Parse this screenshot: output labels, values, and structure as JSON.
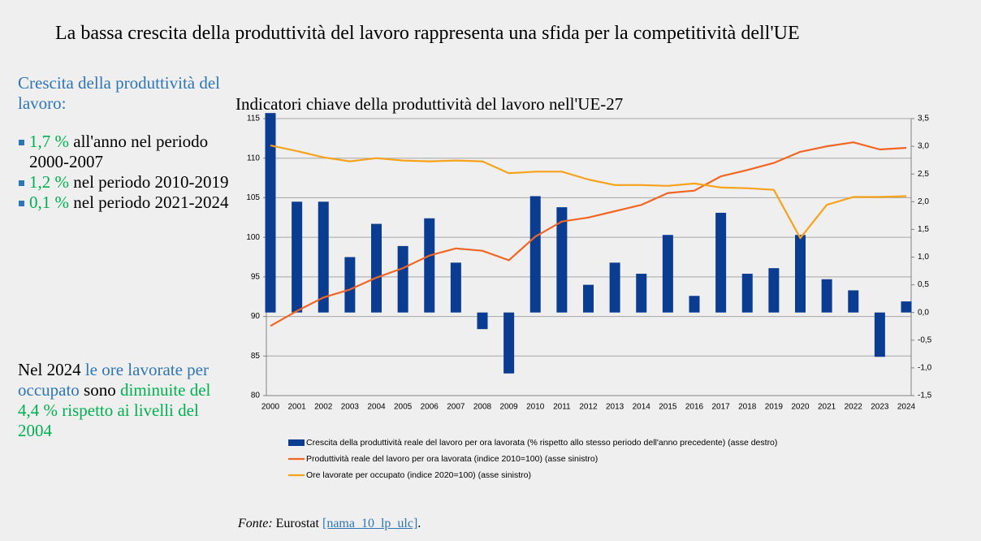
{
  "title": "La bassa crescita della produttività del lavoro rappresenta una sfida per la competitività dell'UE",
  "sidebar": {
    "heading": "Crescita della produttività del lavoro:",
    "bullets": [
      {
        "value": "1,7 %",
        "text": "all'anno nel periodo 2000-2007"
      },
      {
        "value": "1,2 %",
        "text": "nel periodo 2010-2019"
      },
      {
        "value": "0,1 %",
        "text": "nel periodo 2021-2024"
      }
    ],
    "note": [
      "Nel 2024",
      "le ore lavorate per occupato",
      "sono",
      "diminuite del 4,4 % rispetto ai livelli del 2004"
    ]
  },
  "chart_data": {
    "type": "bar-line",
    "title": "Indicatori chiave della produttività del lavoro nell'UE-27",
    "categories": [
      "2000",
      "2001",
      "2002",
      "2003",
      "2004",
      "2005",
      "2006",
      "2007",
      "2008",
      "2009",
      "2010",
      "2011",
      "2012",
      "2013",
      "2014",
      "2015",
      "2016",
      "2017",
      "2018",
      "2019",
      "2020",
      "2021",
      "2022",
      "2023",
      "2024"
    ],
    "series": [
      {
        "name": "Crescita della produttività reale del lavoro per ora lavorata (% rispetto allo stesso periodo dell'anno precedente) (asse destro)",
        "type": "bar",
        "axis": "y2",
        "color": "#0a3d91",
        "values": [
          3.6,
          2.0,
          2.0,
          1.0,
          1.6,
          1.2,
          1.7,
          0.9,
          -0.3,
          -1.1,
          2.1,
          1.9,
          0.5,
          0.9,
          0.7,
          1.4,
          0.3,
          1.8,
          0.7,
          0.8,
          1.4,
          0.6,
          0.4,
          -0.8,
          0.2
        ]
      },
      {
        "name": "Produttività reale del lavoro per ora lavorata (indice 2010=100) (asse sinistro)",
        "type": "line",
        "color": "#f26522",
        "values": [
          88.8,
          90.7,
          92.4,
          93.4,
          94.9,
          96.1,
          97.7,
          98.6,
          98.3,
          97.1,
          100.1,
          102.0,
          102.5,
          103.3,
          104.1,
          105.6,
          105.9,
          107.7,
          108.5,
          109.4,
          110.8,
          111.5,
          112.0,
          111.1,
          111.3
        ]
      },
      {
        "name": "Ore lavorate per occupato (indice 2020=100) (asse sinistro)",
        "type": "line",
        "color": "#f7a21b",
        "values": [
          111.6,
          110.9,
          110.1,
          109.6,
          110.0,
          109.7,
          109.6,
          109.7,
          109.6,
          108.1,
          108.3,
          108.3,
          107.3,
          106.6,
          106.6,
          106.5,
          106.8,
          106.3,
          106.2,
          106.0,
          99.9,
          104.1,
          105.1,
          105.1,
          105.2
        ]
      }
    ],
    "ylim": [
      80,
      115
    ],
    "yticks": [
      80,
      85,
      90,
      95,
      100,
      105,
      110,
      115
    ],
    "y2lim": [
      -1.5,
      3.5
    ],
    "y2ticks": [
      {
        "value": -1.5,
        "label": "-1,5"
      },
      {
        "value": -1.0,
        "label": "-1,0"
      },
      {
        "value": -0.5,
        "label": "-0,5"
      },
      {
        "value": 0,
        "label": "0,0"
      },
      {
        "value": 0.5,
        "label": "0,5"
      },
      {
        "value": 1.0,
        "label": "1,0"
      },
      {
        "value": 1.5,
        "label": "1,5"
      },
      {
        "value": 2.0,
        "label": "2,0"
      },
      {
        "value": 2.5,
        "label": "2,5"
      },
      {
        "value": 3.0,
        "label": "3,0"
      },
      {
        "value": 3.5,
        "label": "3,5"
      }
    ],
    "grid": true,
    "legend": "bottom"
  },
  "source": {
    "label": "Fonte:",
    "text": "Eurostat",
    "link": "[nama_10_lp_ulc]",
    "end": "."
  }
}
